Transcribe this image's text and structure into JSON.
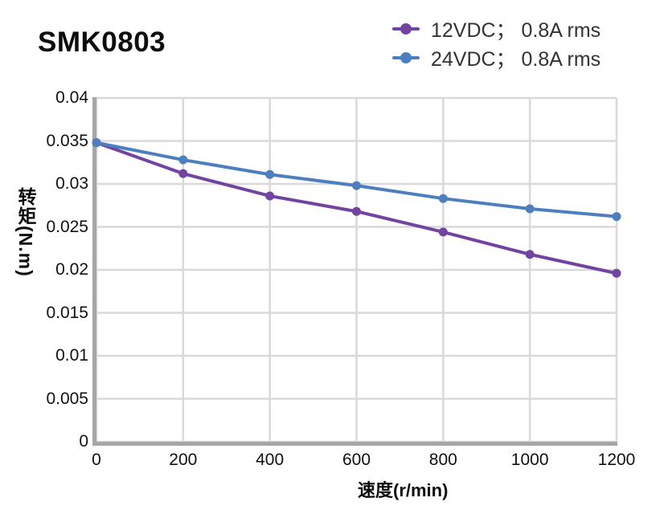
{
  "title": "SMK0803",
  "legend": [
    {
      "label": "12VDC； 0.8A rms",
      "color": "#7243a0"
    },
    {
      "label": "24VDC； 0.8A rms",
      "color": "#4d7ebd"
    }
  ],
  "chart_data": {
    "type": "line",
    "x": [
      0,
      200,
      400,
      600,
      800,
      1000,
      1200
    ],
    "series": [
      {
        "name": "12VDC； 0.8A rms",
        "color": "#7243a0",
        "values": [
          0.0348,
          0.0312,
          0.0286,
          0.0268,
          0.0244,
          0.0218,
          0.0196
        ]
      },
      {
        "name": "24VDC； 0.8A rms",
        "color": "#4d7ebd",
        "values": [
          0.0348,
          0.0328,
          0.0311,
          0.0298,
          0.0283,
          0.0271,
          0.0262
        ]
      }
    ],
    "title": "SMK0803",
    "xlabel": "速度(r/min)",
    "ylabel": "转矩(N.m)",
    "xlim": [
      0,
      1200
    ],
    "ylim": [
      0,
      0.04
    ],
    "x_ticks": [
      "0",
      "200",
      "400",
      "600",
      "800",
      "1000",
      "1200"
    ],
    "y_ticks": [
      "0",
      "0.005",
      "0.01",
      "0.015",
      "0.02",
      "0.025",
      "0.03",
      "0.035",
      "0.04"
    ],
    "grid": true,
    "legend_position": "top-right"
  },
  "colors": {
    "grid": "#d9d9d9",
    "axis": "#a6a6a6",
    "tick_text": "#111111",
    "legend_text": "#333333"
  }
}
